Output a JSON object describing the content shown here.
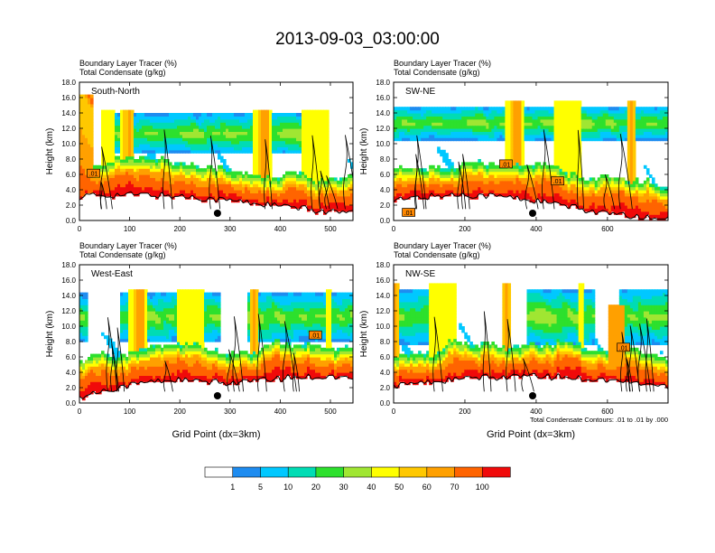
{
  "title": "2013-09-03_03:00:00",
  "chart_data": [
    {
      "type": "heatmap",
      "panel_label": "South-North",
      "header_line1": "Boundary Layer Tracer   (%)",
      "header_line2": "Total Condensate   (g/kg)",
      "ylabel": "Height (km)",
      "xlabel": "",
      "xlim": [
        0,
        545
      ],
      "ylim": [
        0,
        18
      ],
      "xticks": [
        "0",
        "100",
        "200",
        "300",
        "400",
        "500"
      ],
      "xtick_values": [
        0,
        100,
        200,
        300,
        400,
        500
      ],
      "yticks": [
        "0.0",
        "2.0",
        "4.0",
        "6.0",
        "8.0",
        "10.0",
        "12.0",
        "14.0",
        "16.0",
        "18.0"
      ],
      "contour_labels": [
        {
          "text": ".01",
          "x": 28,
          "y": 6.1
        }
      ],
      "marker_x": 275,
      "footnote": ""
    },
    {
      "type": "heatmap",
      "panel_label": "SW-NE",
      "header_line1": "Boundary Layer Tracer   (%)",
      "header_line2": "Total Condensate   (g/kg)",
      "ylabel": "Height (km)",
      "xlabel": "",
      "xlim": [
        0,
        770
      ],
      "ylim": [
        0,
        18
      ],
      "xticks": [
        "0",
        "200",
        "400",
        "600"
      ],
      "xtick_values": [
        0,
        200,
        400,
        600
      ],
      "yticks": [
        "0.0",
        "2.0",
        "4.0",
        "6.0",
        "8.0",
        "10.0",
        "12.0",
        "14.0",
        "16.0",
        "18.0"
      ],
      "contour_labels": [
        {
          "text": ".01",
          "x": 315,
          "y": 7.3
        },
        {
          "text": ".01",
          "x": 460,
          "y": 5.1
        },
        {
          "text": ".01",
          "x": 42,
          "y": 1.0
        }
      ],
      "marker_x": 390,
      "footnote": ""
    },
    {
      "type": "heatmap",
      "panel_label": "West-East",
      "header_line1": "Boundary Layer Tracer   (%)",
      "header_line2": "Total Condensate   (g/kg)",
      "ylabel": "Height (km)",
      "xlabel": "Grid Point (dx=3km)",
      "xlim": [
        0,
        545
      ],
      "ylim": [
        0,
        18
      ],
      "xticks": [
        "0",
        "100",
        "200",
        "300",
        "400",
        "500"
      ],
      "xtick_values": [
        0,
        100,
        200,
        300,
        400,
        500
      ],
      "yticks": [
        "0.0",
        "2.0",
        "4.0",
        "6.0",
        "8.0",
        "10.0",
        "12.0",
        "14.0",
        "16.0",
        "18.0"
      ],
      "contour_labels": [
        {
          "text": ".01",
          "x": 470,
          "y": 8.8
        }
      ],
      "marker_x": 275,
      "footnote": ""
    },
    {
      "type": "heatmap",
      "panel_label": "NW-SE",
      "header_line1": "Boundary Layer Tracer   (%)",
      "header_line2": "Total Condensate   (g/kg)",
      "ylabel": "Height (km)",
      "xlabel": "Grid Point (dx=3km)",
      "xlim": [
        0,
        770
      ],
      "ylim": [
        0,
        18
      ],
      "xticks": [
        "0",
        "200",
        "400",
        "600"
      ],
      "xtick_values": [
        0,
        200,
        400,
        600
      ],
      "yticks": [
        "0.0",
        "2.0",
        "4.0",
        "6.0",
        "8.0",
        "10.0",
        "12.0",
        "14.0",
        "16.0",
        "18.0"
      ],
      "contour_labels": [
        {
          "text": ".01",
          "x": 645,
          "y": 7.2
        }
      ],
      "marker_x": 390,
      "footnote": "Total Condensate Contours: .01 to .01 by .000"
    }
  ],
  "colorbar": {
    "labels": [
      "1",
      "5",
      "10",
      "20",
      "30",
      "40",
      "50",
      "60",
      "70",
      "100"
    ],
    "colors": [
      "#ffffff",
      "#1e8cf0",
      "#00c8ff",
      "#00dcb4",
      "#2de02d",
      "#a0e632",
      "#ffff00",
      "#ffc800",
      "#ffa000",
      "#ff6400",
      "#f00a0a"
    ]
  }
}
